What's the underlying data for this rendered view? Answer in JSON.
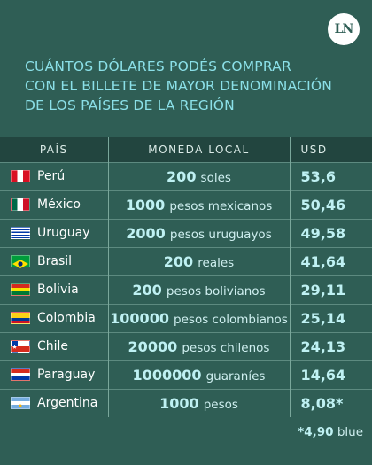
{
  "logo": "LN",
  "title_lines": [
    "CUÁNTOS DÓLARES PODÉS COMPRAR",
    "CON EL BILLETE DE MAYOR DENOMINACIÓN",
    "DE LOS PAÍSES DE LA REGIÓN"
  ],
  "headers": {
    "country": "PAÍS",
    "money": "MONEDA LOCAL",
    "usd": "USD"
  },
  "rows": [
    {
      "country": "Perú",
      "amount": "200",
      "unit": "soles",
      "usd": "53,6",
      "flag": "peru-flag"
    },
    {
      "country": "México",
      "amount": "1000",
      "unit": "pesos mexicanos",
      "usd": "50,46",
      "flag": "mexico-flag"
    },
    {
      "country": "Uruguay",
      "amount": "2000",
      "unit": "pesos uruguayos",
      "usd": "49,58",
      "flag": "uruguay-flag"
    },
    {
      "country": "Brasil",
      "amount": "200",
      "unit": "reales",
      "usd": "41,64",
      "flag": "brazil-flag"
    },
    {
      "country": "Bolivia",
      "amount": "200",
      "unit": "pesos bolivianos",
      "usd": "29,11",
      "flag": "bolivia-flag"
    },
    {
      "country": "Colombia",
      "amount": "100000",
      "unit": "pesos colombianos",
      "usd": "25,14",
      "flag": "colombia-flag"
    },
    {
      "country": "Chile",
      "amount": "20000",
      "unit": "pesos chilenos",
      "usd": "24,13",
      "flag": "chile-flag"
    },
    {
      "country": "Paraguay",
      "amount": "1000000",
      "unit": "guaraníes",
      "usd": "14,64",
      "flag": "paraguay-flag"
    },
    {
      "country": "Argentina",
      "amount": "1000",
      "unit": "pesos",
      "usd": "8,08*",
      "flag": "argentina-flag"
    }
  ],
  "footnote": {
    "value": "*4,90",
    "label": "blue"
  },
  "colors": {
    "background": "#2f5e55",
    "title": "#8be0e8",
    "header_bg": "#22453f",
    "highlight": "#bff1f3"
  }
}
